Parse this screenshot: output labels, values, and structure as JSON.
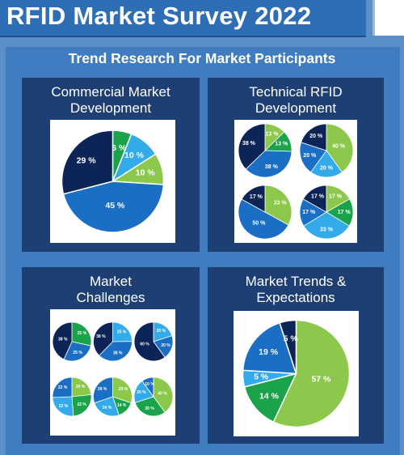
{
  "header": {
    "title": "RFID Market Survey 2022"
  },
  "subtitle": "Trend Research For Market Participants",
  "panels": {
    "commercial": {
      "title_line1": "Commercial Market",
      "title_line2": "Development"
    },
    "technical": {
      "title_line1": "Technical RFID",
      "title_line2": "Development"
    },
    "challenges": {
      "title_line1": "Market",
      "title_line2": "Challenges"
    },
    "trends": {
      "title_line1": "Market Trends &",
      "title_line2": "Expectations"
    }
  },
  "colors": {
    "dark_navy": "#0d2456",
    "blue": "#1a6fc4",
    "sky": "#33aaea",
    "green": "#1aa34a",
    "light_green": "#8cc84b",
    "panel": "#1e3f73",
    "background": "#5b8fc9"
  },
  "chart_data": [
    {
      "type": "pie",
      "panel": "Commercial Market Development",
      "labels": [
        "6 %",
        "10 %",
        "10 %",
        "45 %",
        "29 %"
      ],
      "values": [
        6,
        10,
        10,
        45,
        29
      ],
      "colors": [
        "#1aa34a",
        "#33aaea",
        "#8cc84b",
        "#1a6fc4",
        "#0d2456"
      ]
    },
    {
      "type": "pie",
      "panel": "Technical RFID Development",
      "labels": [
        "13 %",
        "13 %",
        "38 %",
        "38 %"
      ],
      "values": [
        13,
        13,
        38,
        38
      ],
      "colors": [
        "#8cc84b",
        "#1aa34a",
        "#1a6fc4",
        "#0d2456"
      ]
    },
    {
      "type": "pie",
      "panel": "Technical RFID Development",
      "labels": [
        "40 %",
        "20 %",
        "20 %",
        "20 %"
      ],
      "values": [
        40,
        20,
        20,
        20
      ],
      "colors": [
        "#8cc84b",
        "#33aaea",
        "#1a6fc4",
        "#0d2456"
      ]
    },
    {
      "type": "pie",
      "panel": "Technical RFID Development",
      "labels": [
        "33 %",
        "50 %",
        "17 %"
      ],
      "values": [
        33,
        50,
        17
      ],
      "colors": [
        "#8cc84b",
        "#1a6fc4",
        "#0d2456"
      ]
    },
    {
      "type": "pie",
      "panel": "Technical RFID Development",
      "labels": [
        "17 %",
        "17 %",
        "33 %",
        "17 %",
        "17 %"
      ],
      "values": [
        17,
        17,
        33,
        17,
        17
      ],
      "colors": [
        "#8cc84b",
        "#1aa34a",
        "#33aaea",
        "#1a6fc4",
        "#0d2456"
      ]
    },
    {
      "type": "pie",
      "panel": "Market Challenges",
      "labels": [
        "25 %",
        "25 %",
        "38 %"
      ],
      "values": [
        25,
        25,
        38
      ],
      "colors": [
        "#1aa34a",
        "#1a6fc4",
        "#0d2456"
      ]
    },
    {
      "type": "pie",
      "panel": "Market Challenges",
      "labels": [
        "25 %",
        "38 %",
        "38 %"
      ],
      "values": [
        25,
        38,
        38
      ],
      "colors": [
        "#33aaea",
        "#1a6fc4",
        "#0d2456"
      ]
    },
    {
      "type": "pie",
      "panel": "Market Challenges",
      "labels": [
        "20 %",
        "20 %",
        "60 %"
      ],
      "values": [
        20,
        20,
        60
      ],
      "colors": [
        "#33aaea",
        "#1a6fc4",
        "#0d2456"
      ]
    },
    {
      "type": "pie",
      "panel": "Market Challenges",
      "labels": [
        "20 %",
        "22 %",
        "22 %",
        "22 %"
      ],
      "values": [
        20,
        22,
        22,
        22
      ],
      "colors": [
        "#8cc84b",
        "#1aa34a",
        "#33aaea",
        "#1a6fc4"
      ]
    },
    {
      "type": "pie",
      "panel": "Market Challenges",
      "labels": [
        "29 %",
        "14 %",
        "24 %",
        "29 %"
      ],
      "values": [
        29,
        14,
        24,
        29
      ],
      "colors": [
        "#8cc84b",
        "#1aa34a",
        "#33aaea",
        "#1a6fc4"
      ]
    },
    {
      "type": "pie",
      "panel": "Market Challenges",
      "labels": [
        "40 %",
        "30 %",
        "20 %",
        "10 %"
      ],
      "values": [
        40,
        30,
        20,
        10
      ],
      "colors": [
        "#8cc84b",
        "#1aa34a",
        "#33aaea",
        "#1a6fc4"
      ]
    },
    {
      "type": "pie",
      "panel": "Market Trends & Expectations",
      "labels": [
        "57 %",
        "14 %",
        "5 %",
        "19 %",
        "5 %"
      ],
      "values": [
        57,
        14,
        5,
        19,
        5
      ],
      "colors": [
        "#8cc84b",
        "#1aa34a",
        "#33aaea",
        "#1a6fc4",
        "#0d2456"
      ]
    }
  ]
}
